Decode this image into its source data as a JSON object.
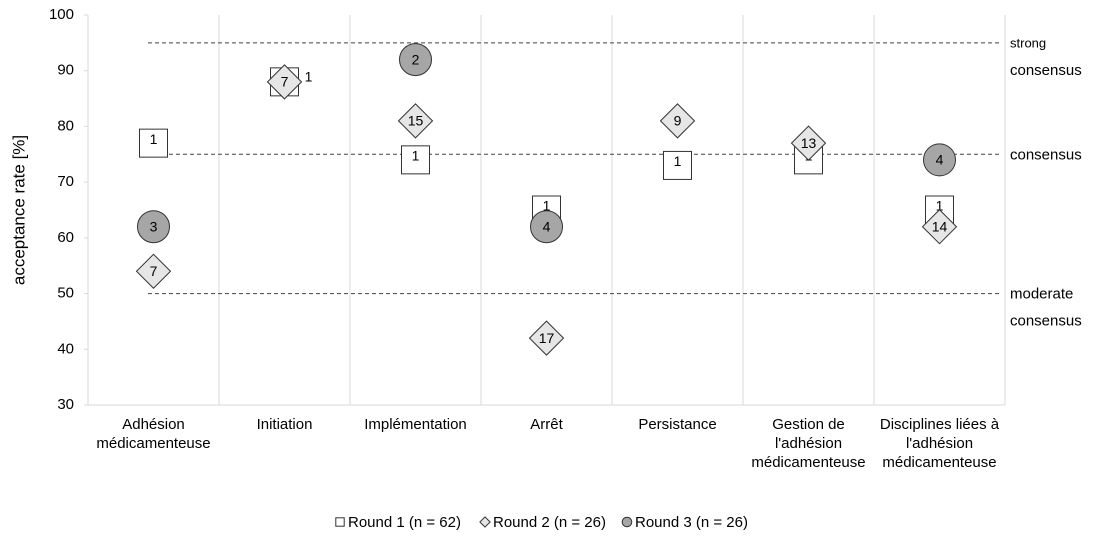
{
  "chart_data": {
    "type": "scatter",
    "y_label": "acceptance rate [%]",
    "categories": [
      "Adhésion médicamenteuse",
      "Initiation",
      "Implémentation",
      "Arrêt",
      "Persistance",
      "Gestion de l'adhésion médicamenteuse",
      "Disciplines liées à l'adhésion médicamenteuse"
    ],
    "series": [
      {
        "name": "Round 1 (n = 62)",
        "marker": "square",
        "color": "#ffffff",
        "values": [
          77,
          88,
          74,
          65,
          73,
          74,
          65
        ],
        "labels": [
          1,
          1,
          1,
          1,
          1,
          1,
          1
        ]
      },
      {
        "name": "Round 2 (n = 26)",
        "marker": "diamond",
        "color": "#e6e6e6",
        "values": [
          54,
          88,
          81,
          42,
          81,
          77,
          62
        ],
        "labels": [
          7,
          7,
          15,
          17,
          9,
          13,
          14
        ]
      },
      {
        "name": "Round 3 (n = 26)",
        "marker": "circle",
        "color": "#a6a6a6",
        "values": [
          62,
          null,
          92,
          62,
          null,
          null,
          74
        ],
        "labels": [
          3,
          null,
          2,
          4,
          null,
          null,
          4
        ]
      }
    ],
    "reference_lines": [
      {
        "value": 95,
        "label": [
          "strong",
          "consensus"
        ]
      },
      {
        "value": 75,
        "label": [
          "consensus"
        ]
      },
      {
        "value": 50,
        "label": [
          "moderate",
          "consensus"
        ]
      }
    ],
    "ylim": [
      30,
      100
    ],
    "yticks": [
      30,
      40,
      50,
      60,
      70,
      80,
      90,
      100
    ]
  }
}
